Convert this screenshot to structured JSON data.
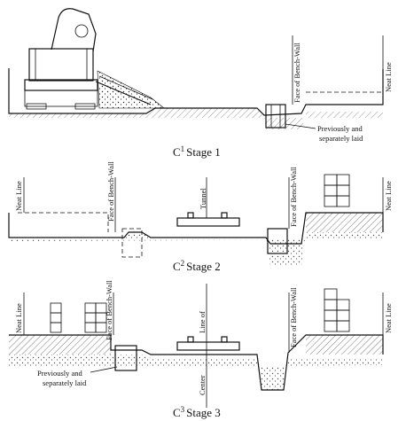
{
  "stage1": {
    "caption_prefix": "C",
    "caption_sup": "1",
    "caption_text": "Stage 1",
    "neat_line": "Neat Line",
    "face_of_bench_wall": "Face of Bench-Wall",
    "note_line1": "Previously and",
    "note_line2": "separately laid"
  },
  "stage2": {
    "caption_prefix": "C",
    "caption_sup": "2",
    "caption_text": "Stage 2",
    "neat_line_left": "Neat Line",
    "neat_line_right": "Neat Line",
    "face_of_bench_wall_left": "Face of Bench-Wall",
    "face_of_bench_wall_right": "Face of Bench-Wall",
    "tunnel": "Tunnel"
  },
  "stage3": {
    "caption_prefix": "C",
    "caption_sup": "3",
    "caption_text": "Stage 3",
    "neat_line_left": "Neat Line",
    "neat_line_right": "Neat Line",
    "face_of_bench_wall_left": "Face of Bench-Wall",
    "face_of_bench_wall_right": "Face of Bench-Wall",
    "line_of": "Line of",
    "center": "Center",
    "note_line1": "Previously and",
    "note_line2": "separately laid"
  }
}
